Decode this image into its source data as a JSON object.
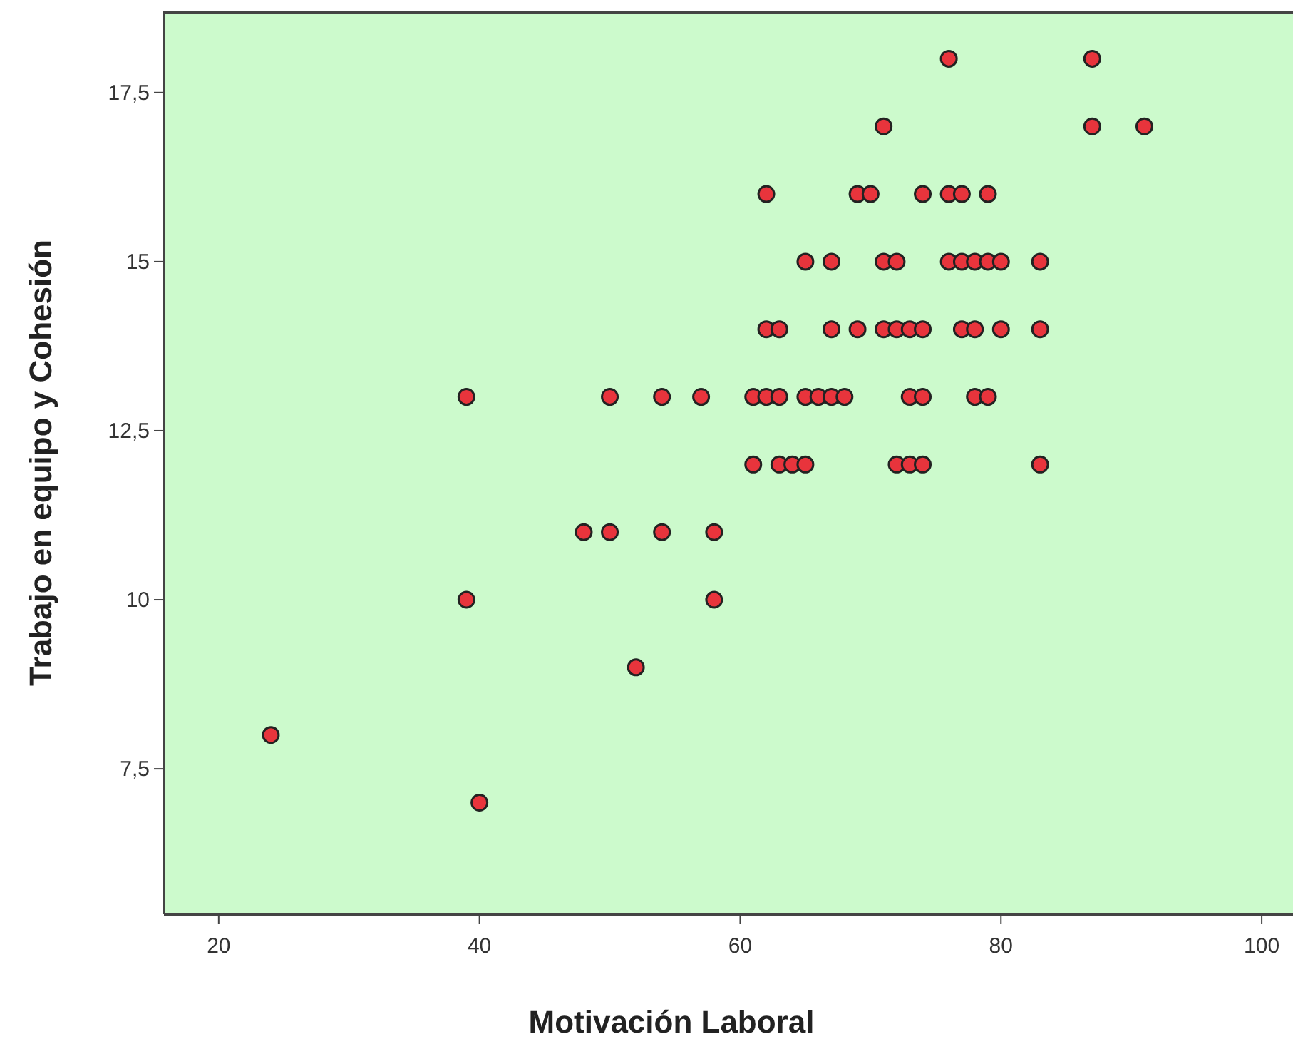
{
  "chart_data": {
    "type": "scatter",
    "xlabel": "Motivación Laboral",
    "ylabel": "Trabajo en equipo y Cohesión",
    "xlim": [
      15.8,
      102.4
    ],
    "ylim": [
      5.35,
      18.7
    ],
    "xticks": [
      20,
      40,
      60,
      80,
      100
    ],
    "yticks": [
      {
        "value": 7.5,
        "label": "7,5"
      },
      10,
      {
        "value": 12.5,
        "label": "12,5"
      },
      15,
      {
        "value": 17.5,
        "label": "17,5"
      }
    ],
    "marker": "circle",
    "grid": false,
    "series": [
      {
        "color": "#e8343c",
        "x": [
          76,
          87,
          71,
          87,
          91,
          62,
          69,
          70,
          74,
          76,
          77,
          79,
          65,
          67,
          71,
          72,
          76,
          77,
          78,
          79,
          80,
          83,
          62,
          63,
          67,
          69,
          71,
          72,
          73,
          74,
          77,
          78,
          80,
          83,
          39,
          50,
          54,
          57,
          61,
          62,
          63,
          65,
          66,
          67,
          68,
          73,
          74,
          78,
          79,
          61,
          63,
          64,
          65,
          72,
          73,
          74,
          83,
          48,
          50,
          54,
          58,
          39,
          58,
          52,
          24,
          40
        ],
        "values": [
          18,
          18,
          17,
          17,
          17,
          16,
          16,
          16,
          16,
          16,
          16,
          16,
          15,
          15,
          15,
          15,
          15,
          15,
          15,
          15,
          15,
          15,
          14,
          14,
          14,
          14,
          14,
          14,
          14,
          14,
          14,
          14,
          14,
          14,
          13,
          13,
          13,
          13,
          13,
          13,
          13,
          13,
          13,
          13,
          13,
          13,
          13,
          13,
          13,
          12,
          12,
          12,
          12,
          12,
          12,
          12,
          12,
          11,
          11,
          11,
          11,
          10,
          10,
          9,
          8,
          7
        ]
      }
    ]
  }
}
